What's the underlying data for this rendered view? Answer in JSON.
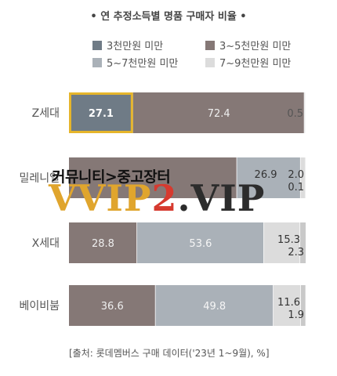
{
  "chart_data": {
    "type": "bar",
    "orientation": "horizontal",
    "stacked": true,
    "percent_stacked": true,
    "title": "• 연 추정소득별 명품 구매자 비율 •",
    "categories": [
      "Z세대",
      "밀레니얼",
      "X세대",
      "베이비붐"
    ],
    "series": [
      {
        "name": "3천만원 미만",
        "color": "#6f7b86",
        "values": [
          27.1,
          0,
          0,
          0
        ]
      },
      {
        "name": "3~5천만원 미만",
        "color": "#857876",
        "values": [
          72.4,
          71.0,
          28.8,
          36.6
        ]
      },
      {
        "name": "5~7천만원 미만",
        "color": "#aab1b8",
        "values": [
          0,
          26.9,
          53.6,
          49.8
        ]
      },
      {
        "name": "7~9천만원 미만",
        "color": "#dcdcdc",
        "values": [
          0.5,
          2.0,
          15.3,
          11.6
        ]
      },
      {
        "name": "",
        "color": "#c9c9c9",
        "values": [
          0,
          0.1,
          2.3,
          1.9
        ]
      }
    ],
    "labels": [
      [
        "27.1",
        "",
        "",
        "72.4",
        "",
        "0.5"
      ],
      [
        "",
        "",
        "",
        "",
        "26.9",
        "2.0",
        "0.1"
      ],
      [
        "",
        "28.8",
        "53.6",
        "15.3",
        "2.3"
      ],
      [
        "",
        "36.6",
        "49.8",
        "11.6",
        "1.9"
      ]
    ],
    "xlim": [
      0,
      100
    ],
    "legend": "top",
    "grid": false,
    "highlight": {
      "category": "Z세대",
      "series": "3천만원 미만",
      "color": "#e6b52b"
    }
  },
  "source": "[출처: 롯데멤버스 구매 데이터('23년 1~9월), %]",
  "watermark": {
    "top_text": "커뮤니티>중고장터",
    "main_part1": "VVIP",
    "main_part2": "2",
    "main_part3": ".VIP"
  }
}
